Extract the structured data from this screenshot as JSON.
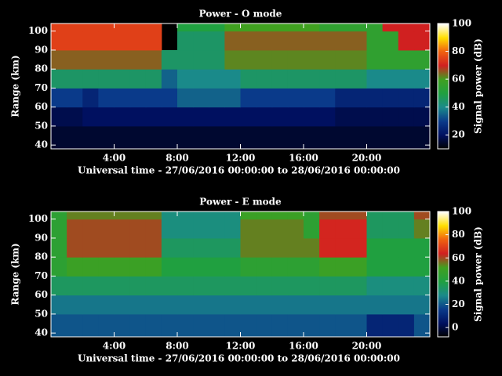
{
  "chart_data": [
    {
      "type": "heatmap",
      "title": "Power - O mode",
      "xlabel": "Universal time - 27/06/2016 00:00:00 to 28/06/2016 00:00:00",
      "ylabel": "Range (km)",
      "colorbar_label": "Signal power (dB)",
      "xlim": [
        0,
        24
      ],
      "ylim": [
        38,
        104
      ],
      "xticks": [
        {
          "value": 4,
          "label": "4:00"
        },
        {
          "value": 8,
          "label": "8:00"
        },
        {
          "value": 12,
          "label": "12:00"
        },
        {
          "value": 16,
          "label": "16:00"
        },
        {
          "value": 20,
          "label": "20:00"
        }
      ],
      "yticks": [
        40,
        50,
        60,
        70,
        80,
        90,
        100
      ],
      "zlim": [
        10,
        100
      ],
      "zticks": [
        20,
        40,
        60,
        80,
        100
      ],
      "colorscale": [
        "#000000",
        "#001060",
        "#0a3a8a",
        "#1a8a8a",
        "#20a040",
        "#40a020",
        "#d02020",
        "#f06010",
        "#ffe000",
        "#ffffff"
      ],
      "x_edges": [
        0,
        1,
        2,
        3,
        4,
        5,
        6,
        7,
        8,
        9,
        10,
        11,
        12,
        13,
        14,
        15,
        16,
        17,
        18,
        19,
        20,
        21,
        22,
        23,
        24
      ],
      "y_edges": [
        38,
        50,
        60,
        70,
        80,
        90,
        100,
        104
      ],
      "values": [
        [
          15,
          15,
          15,
          15,
          15,
          15,
          15,
          15,
          15,
          15,
          15,
          15,
          15,
          15,
          15,
          15,
          15,
          15,
          15,
          15,
          15,
          15,
          15,
          15
        ],
        [
          18,
          18,
          20,
          20,
          20,
          20,
          20,
          20,
          20,
          20,
          20,
          20,
          20,
          20,
          20,
          20,
          20,
          20,
          18,
          18,
          18,
          18,
          18,
          18
        ],
        [
          30,
          30,
          25,
          30,
          30,
          30,
          30,
          30,
          35,
          35,
          35,
          35,
          30,
          30,
          30,
          30,
          30,
          30,
          25,
          25,
          25,
          25,
          25,
          25
        ],
        [
          45,
          45,
          45,
          45,
          45,
          45,
          45,
          35,
          40,
          40,
          40,
          40,
          45,
          45,
          45,
          45,
          45,
          45,
          45,
          45,
          40,
          40,
          40,
          40
        ],
        [
          65,
          65,
          65,
          65,
          65,
          65,
          65,
          45,
          45,
          45,
          45,
          62,
          62,
          62,
          62,
          62,
          62,
          62,
          62,
          62,
          55,
          55,
          55,
          55
        ],
        [
          75,
          75,
          75,
          75,
          75,
          75,
          75,
          null,
          45,
          45,
          45,
          65,
          65,
          65,
          65,
          65,
          65,
          65,
          65,
          65,
          55,
          55,
          70,
          70
        ],
        [
          75,
          75,
          75,
          75,
          75,
          75,
          75,
          null,
          50,
          50,
          50,
          60,
          60,
          60,
          60,
          60,
          60,
          55,
          55,
          55,
          55,
          70,
          70,
          70
        ]
      ]
    },
    {
      "type": "heatmap",
      "title": "Power - E mode",
      "xlabel": "Universal time - 27/06/2016 00:00:00 to 28/06/2016 00:00:00",
      "ylabel": "Range (km)",
      "colorbar_label": "Signal power (dB)",
      "xlim": [
        0,
        24
      ],
      "ylim": [
        38,
        104
      ],
      "xticks": [
        {
          "value": 4,
          "label": "4:00"
        },
        {
          "value": 8,
          "label": "8:00"
        },
        {
          "value": 12,
          "label": "12:00"
        },
        {
          "value": 16,
          "label": "16:00"
        },
        {
          "value": 20,
          "label": "20:00"
        }
      ],
      "yticks": [
        40,
        50,
        60,
        70,
        80,
        90,
        100
      ],
      "zlim": [
        -8,
        100
      ],
      "zticks": [
        0,
        20,
        40,
        60,
        80,
        100
      ],
      "colorscale": [
        "#000000",
        "#001060",
        "#0a3a8a",
        "#1a8a8a",
        "#20a040",
        "#40a020",
        "#d02020",
        "#f06010",
        "#ffe000",
        "#ffffff"
      ],
      "x_edges": [
        0,
        1,
        2,
        3,
        4,
        5,
        6,
        7,
        8,
        9,
        10,
        11,
        12,
        13,
        14,
        15,
        16,
        17,
        18,
        19,
        20,
        21,
        22,
        23,
        24
      ],
      "y_edges": [
        38,
        50,
        60,
        70,
        80,
        90,
        100,
        104
      ],
      "values": [
        [
          20,
          20,
          20,
          20,
          20,
          20,
          20,
          20,
          20,
          20,
          20,
          20,
          20,
          20,
          20,
          20,
          20,
          20,
          20,
          20,
          10,
          10,
          10,
          20
        ],
        [
          25,
          25,
          25,
          25,
          25,
          25,
          25,
          25,
          25,
          25,
          25,
          25,
          25,
          25,
          25,
          25,
          25,
          25,
          25,
          25,
          25,
          25,
          25,
          25
        ],
        [
          35,
          35,
          35,
          35,
          35,
          35,
          35,
          35,
          35,
          35,
          35,
          35,
          35,
          35,
          35,
          35,
          35,
          35,
          35,
          35,
          30,
          30,
          30,
          30
        ],
        [
          45,
          50,
          50,
          50,
          50,
          50,
          50,
          40,
          40,
          40,
          40,
          40,
          45,
          45,
          45,
          45,
          45,
          50,
          50,
          50,
          40,
          40,
          40,
          40
        ],
        [
          45,
          60,
          60,
          60,
          60,
          60,
          60,
          35,
          35,
          35,
          35,
          35,
          55,
          55,
          55,
          55,
          55,
          65,
          65,
          65,
          40,
          40,
          40,
          40
        ],
        [
          45,
          60,
          60,
          60,
          60,
          60,
          60,
          30,
          30,
          30,
          30,
          30,
          55,
          55,
          55,
          55,
          45,
          65,
          65,
          65,
          35,
          35,
          35,
          55
        ],
        [
          45,
          55,
          55,
          55,
          55,
          55,
          55,
          30,
          30,
          30,
          30,
          30,
          50,
          50,
          50,
          50,
          45,
          60,
          60,
          60,
          35,
          35,
          35,
          60
        ]
      ]
    }
  ]
}
